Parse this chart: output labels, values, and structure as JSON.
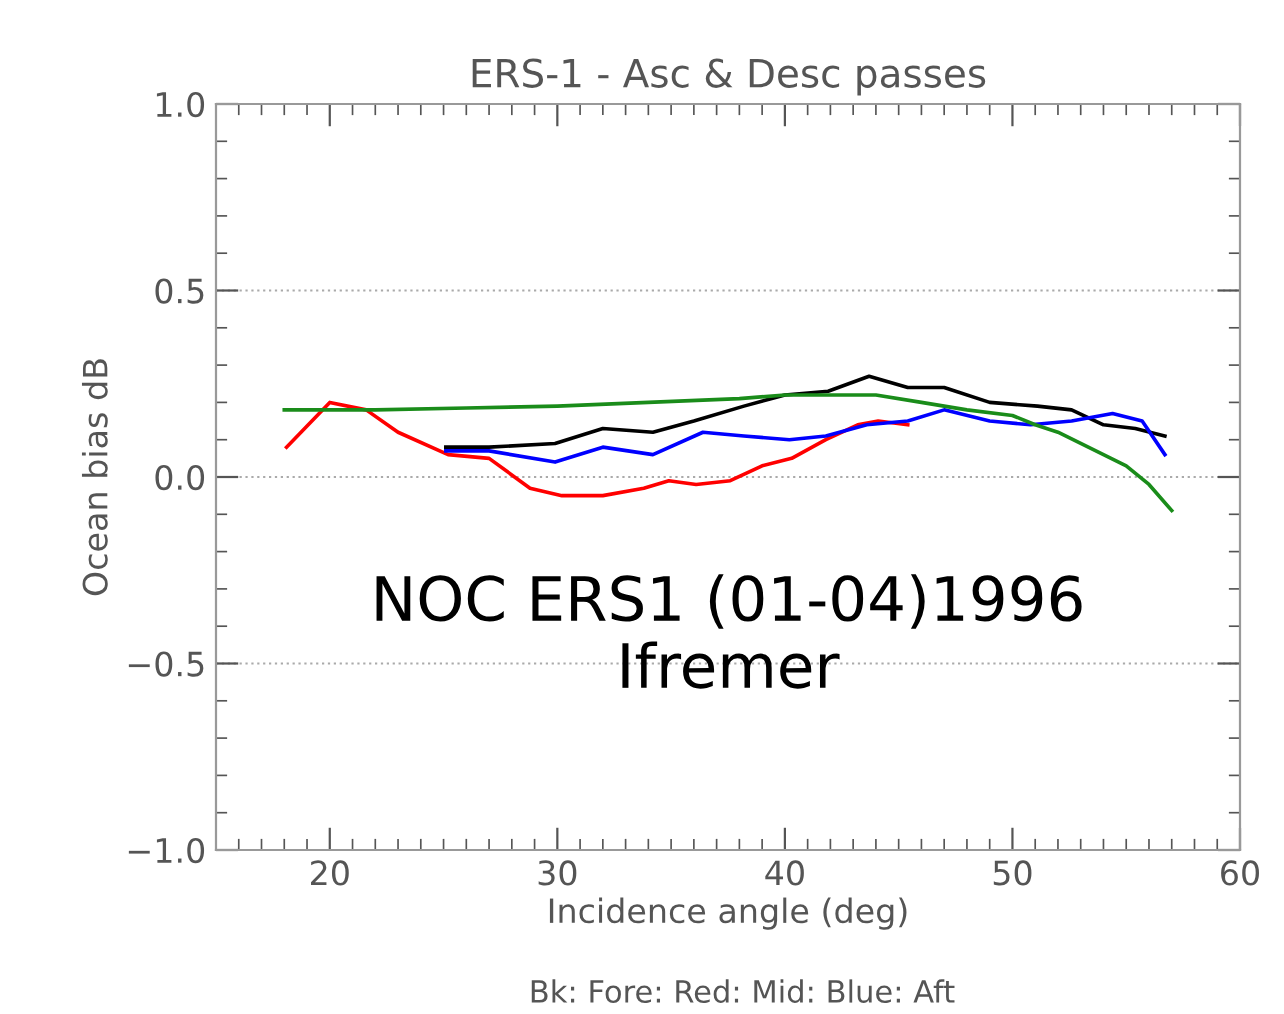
{
  "chart_data": {
    "type": "line",
    "title": "ERS-1 - Asc & Desc passes",
    "xlabel": "Incidence angle (deg)",
    "ylabel": "Ocean bias dB",
    "annotations": [
      "NOC ERS1 (01-04)1996",
      "Ifremer",
      "Bk: Fore: Red: Mid: Blue: Aft"
    ],
    "xlim": [
      15,
      60
    ],
    "xticks": [
      20,
      30,
      40,
      50,
      60
    ],
    "ylim": [
      -1.0,
      1.0
    ],
    "yticks": [
      {
        "value": -1.0,
        "label": "−1.0"
      },
      {
        "value": -0.5,
        "label": "−0.5"
      },
      {
        "value": 0.0,
        "label": "0.0"
      },
      {
        "value": 0.5,
        "label": "0.5"
      },
      {
        "value": 1.0,
        "label": "1.0"
      }
    ],
    "grid": "y",
    "marker": "none",
    "line_style": "solid",
    "series": [
      {
        "color": "#000000",
        "x": [
          25.1,
          27,
          29.9,
          32,
          34.2,
          36,
          38.2,
          40,
          41.9,
          43.7,
          45.4,
          47,
          49,
          51.1,
          52.6,
          54,
          55.4,
          56.7
        ],
        "values": [
          0.08,
          0.08,
          0.09,
          0.13,
          0.12,
          0.15,
          0.19,
          0.22,
          0.23,
          0.27,
          0.24,
          0.24,
          0.2,
          0.19,
          0.18,
          0.14,
          0.13,
          0.11
        ]
      },
      {
        "color": "#ff0000",
        "x": [
          18.1,
          20,
          21.6,
          23,
          25.2,
          27,
          28.8,
          30.2,
          32,
          33.8,
          34.9,
          36.1,
          37.6,
          39,
          40.3,
          41.8,
          43.2,
          44.1,
          45.4
        ],
        "values": [
          0.08,
          0.2,
          0.18,
          0.12,
          0.06,
          0.05,
          -0.03,
          -0.05,
          -0.05,
          -0.03,
          -0.01,
          -0.02,
          -0.01,
          0.03,
          0.05,
          0.1,
          0.14,
          0.15,
          0.14
        ]
      },
      {
        "color": "#0000ff",
        "x": [
          25.1,
          27,
          29.9,
          32,
          34.2,
          36.4,
          38.2,
          40.2,
          41.8,
          43.6,
          45.4,
          47,
          49,
          50.8,
          52.6,
          54.4,
          55.7,
          56.7
        ],
        "values": [
          0.07,
          0.07,
          0.04,
          0.08,
          0.06,
          0.12,
          0.11,
          0.1,
          0.11,
          0.14,
          0.15,
          0.18,
          0.15,
          0.14,
          0.15,
          0.17,
          0.15,
          0.06
        ]
      },
      {
        "color": "#1a8c1a",
        "x": [
          18,
          22,
          26,
          30,
          34,
          38,
          40,
          42,
          44,
          46,
          48,
          50,
          51,
          52,
          53,
          54,
          55,
          56,
          57
        ],
        "values": [
          0.18,
          0.18,
          0.185,
          0.19,
          0.2,
          0.21,
          0.22,
          0.22,
          0.22,
          0.2,
          0.18,
          0.165,
          0.14,
          0.12,
          0.09,
          0.06,
          0.03,
          -0.02,
          -0.09
        ]
      }
    ]
  }
}
